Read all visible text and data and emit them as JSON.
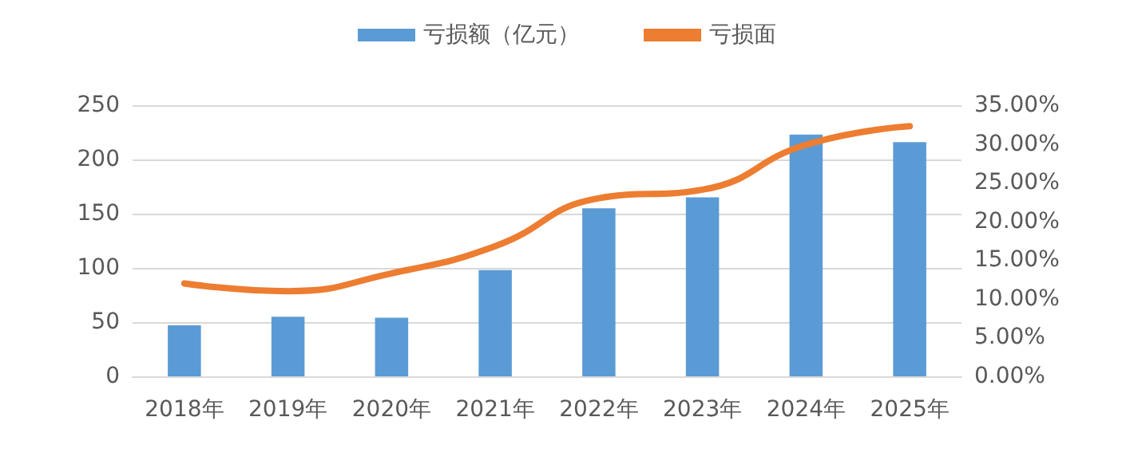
{
  "chart_data": {
    "type": "bar",
    "categories": [
      "2018年",
      "2019年",
      "2020年",
      "2021年",
      "2022年",
      "2023年",
      "2024年",
      "2025年"
    ],
    "series": [
      {
        "name": "亏损额（亿元）",
        "color": "#5b9bd5",
        "values": [
          47,
          55,
          54,
          98,
          155,
          165,
          223,
          216
        ]
      },
      {
        "name": "亏损面",
        "type": "line",
        "axis": "y2",
        "color": "#ed7d31",
        "values": [
          12.0,
          11.0,
          13.3,
          16.8,
          23.0,
          24.1,
          29.9,
          32.3
        ]
      }
    ],
    "ylim": [
      0,
      250
    ],
    "yticks": [
      0,
      50,
      100,
      150,
      200,
      250
    ],
    "y2lim": [
      0,
      35
    ],
    "y2ticks": [
      {
        "value": 0,
        "label": "0.00%"
      },
      {
        "value": 5,
        "label": "5.00%"
      },
      {
        "value": 10,
        "label": "10.00%"
      },
      {
        "value": 15,
        "label": "15.00%"
      },
      {
        "value": 20,
        "label": "20.00%"
      },
      {
        "value": 25,
        "label": "25.00%"
      },
      {
        "value": 30,
        "label": "30.00%"
      },
      {
        "value": 35,
        "label": "35.00%"
      }
    ],
    "grid": "y",
    "legend": "top",
    "marker": "none"
  }
}
